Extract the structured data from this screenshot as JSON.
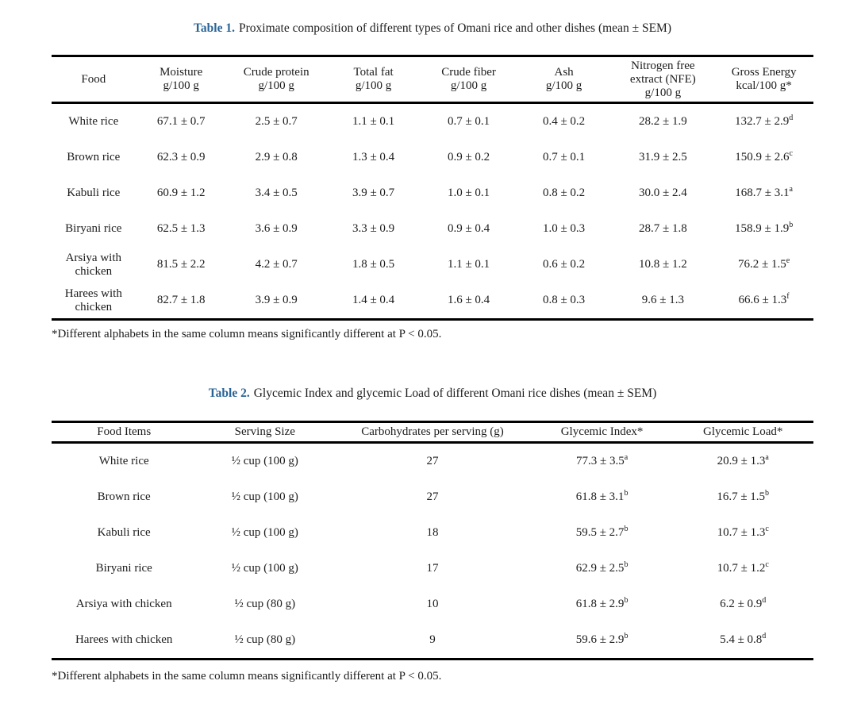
{
  "colors": {
    "table_label_blue": "#2a6496",
    "rule_black": "#000000"
  },
  "tables": [
    {
      "label": "Table 1.",
      "caption": "Proximate composition of different types of Omani rice and other dishes (mean ± SEM)",
      "columns": [
        {
          "text": "Food"
        },
        {
          "text": "Moisture\ng/100 g"
        },
        {
          "text": "Crude protein\ng/100 g"
        },
        {
          "text": "Total fat\ng/100 g"
        },
        {
          "text": "Crude fiber\ng/100 g"
        },
        {
          "text": "Ash\ng/100 g"
        },
        {
          "text": "Nitrogen free\nextract (NFE)\ng/100 g"
        },
        {
          "text": "Gross Energy\nkcal/100 g*"
        }
      ],
      "rows": [
        {
          "cells": [
            {
              "text": "White rice"
            },
            {
              "text": "67.1 ± 0.7"
            },
            {
              "text": "2.5 ± 0.7"
            },
            {
              "text": "1.1 ± 0.1"
            },
            {
              "text": "0.7 ± 0.1"
            },
            {
              "text": "0.4 ± 0.2"
            },
            {
              "text": "28.2 ± 1.9"
            },
            {
              "text": "132.7 ± 2.9",
              "sup": "d"
            }
          ]
        },
        {
          "cells": [
            {
              "text": "Brown rice"
            },
            {
              "text": "62.3 ± 0.9"
            },
            {
              "text": "2.9 ± 0.8"
            },
            {
              "text": "1.3 ± 0.4"
            },
            {
              "text": "0.9 ± 0.2"
            },
            {
              "text": "0.7 ± 0.1"
            },
            {
              "text": "31.9 ± 2.5"
            },
            {
              "text": "150.9 ± 2.6",
              "sup": "c"
            }
          ]
        },
        {
          "cells": [
            {
              "text": "Kabuli rice"
            },
            {
              "text": "60.9 ± 1.2"
            },
            {
              "text": "3.4 ± 0.5"
            },
            {
              "text": "3.9 ± 0.7"
            },
            {
              "text": "1.0 ± 0.1"
            },
            {
              "text": "0.8 ± 0.2"
            },
            {
              "text": "30.0 ± 2.4"
            },
            {
              "text": "168.7 ± 3.1",
              "sup": "a"
            }
          ]
        },
        {
          "cells": [
            {
              "text": "Biryani rice"
            },
            {
              "text": "62.5 ± 1.3"
            },
            {
              "text": "3.6 ± 0.9"
            },
            {
              "text": "3.3 ± 0.9"
            },
            {
              "text": "0.9 ± 0.4"
            },
            {
              "text": "1.0 ± 0.3"
            },
            {
              "text": "28.7 ± 1.8"
            },
            {
              "text": "158.9 ± 1.9",
              "sup": "b"
            }
          ]
        },
        {
          "cells": [
            {
              "text": "Arsiya with chicken"
            },
            {
              "text": "81.5 ± 2.2"
            },
            {
              "text": "4.2 ± 0.7"
            },
            {
              "text": "1.8 ± 0.5"
            },
            {
              "text": "1.1 ± 0.1"
            },
            {
              "text": "0.6 ± 0.2"
            },
            {
              "text": "10.8 ± 1.2"
            },
            {
              "text": "76.2 ± 1.5",
              "sup": "e"
            }
          ]
        },
        {
          "cells": [
            {
              "text": "Harees with chicken"
            },
            {
              "text": "82.7 ± 1.8"
            },
            {
              "text": "3.9 ± 0.9"
            },
            {
              "text": "1.4 ± 0.4"
            },
            {
              "text": "1.6 ± 0.4"
            },
            {
              "text": "0.8 ± 0.3"
            },
            {
              "text": "9.6 ± 1.3"
            },
            {
              "text": "66.6 ± 1.3",
              "sup": "f"
            }
          ]
        }
      ],
      "footnote": "*Different alphabets in the same column means significantly different at P < 0.05."
    },
    {
      "label": "Table 2.",
      "caption": "Glycemic Index and glycemic Load of different Omani rice dishes (mean ± SEM)",
      "columns": [
        {
          "text": "Food Items"
        },
        {
          "text": "Serving Size"
        },
        {
          "text": "Carbohydrates per serving (g)"
        },
        {
          "text": "Glycemic Index*"
        },
        {
          "text": "Glycemic Load*"
        }
      ],
      "rows": [
        {
          "cells": [
            {
              "text": "White rice"
            },
            {
              "text": "½ cup (100 g)"
            },
            {
              "text": "27"
            },
            {
              "text": "77.3 ± 3.5",
              "sup": "a"
            },
            {
              "text": "20.9 ± 1.3",
              "sup": "a"
            }
          ]
        },
        {
          "cells": [
            {
              "text": "Brown rice"
            },
            {
              "text": "½ cup (100 g)"
            },
            {
              "text": "27"
            },
            {
              "text": "61.8 ± 3.1",
              "sup": "b"
            },
            {
              "text": "16.7 ± 1.5",
              "sup": "b"
            }
          ]
        },
        {
          "cells": [
            {
              "text": "Kabuli rice"
            },
            {
              "text": "½ cup (100 g)"
            },
            {
              "text": "18"
            },
            {
              "text": "59.5 ± 2.7",
              "sup": "b"
            },
            {
              "text": "10.7 ± 1.3",
              "sup": "c"
            }
          ]
        },
        {
          "cells": [
            {
              "text": "Biryani rice"
            },
            {
              "text": "½ cup (100 g)"
            },
            {
              "text": "17"
            },
            {
              "text": "62.9 ± 2.5",
              "sup": "b"
            },
            {
              "text": "10.7 ± 1.2",
              "sup": "c"
            }
          ]
        },
        {
          "cells": [
            {
              "text": "Arsiya with chicken"
            },
            {
              "text": "½ cup (80 g)"
            },
            {
              "text": "10"
            },
            {
              "text": "61.8 ± 2.9",
              "sup": "b"
            },
            {
              "text": "6.2 ± 0.9",
              "sup": "d"
            }
          ]
        },
        {
          "cells": [
            {
              "text": "Harees with chicken"
            },
            {
              "text": "½ cup (80 g)"
            },
            {
              "text": "9"
            },
            {
              "text": "59.6 ± 2.9",
              "sup": "b"
            },
            {
              "text": "5.4 ± 0.8",
              "sup": "d"
            }
          ]
        }
      ],
      "footnote": "*Different alphabets in the same column means significantly different at P < 0.05."
    }
  ]
}
